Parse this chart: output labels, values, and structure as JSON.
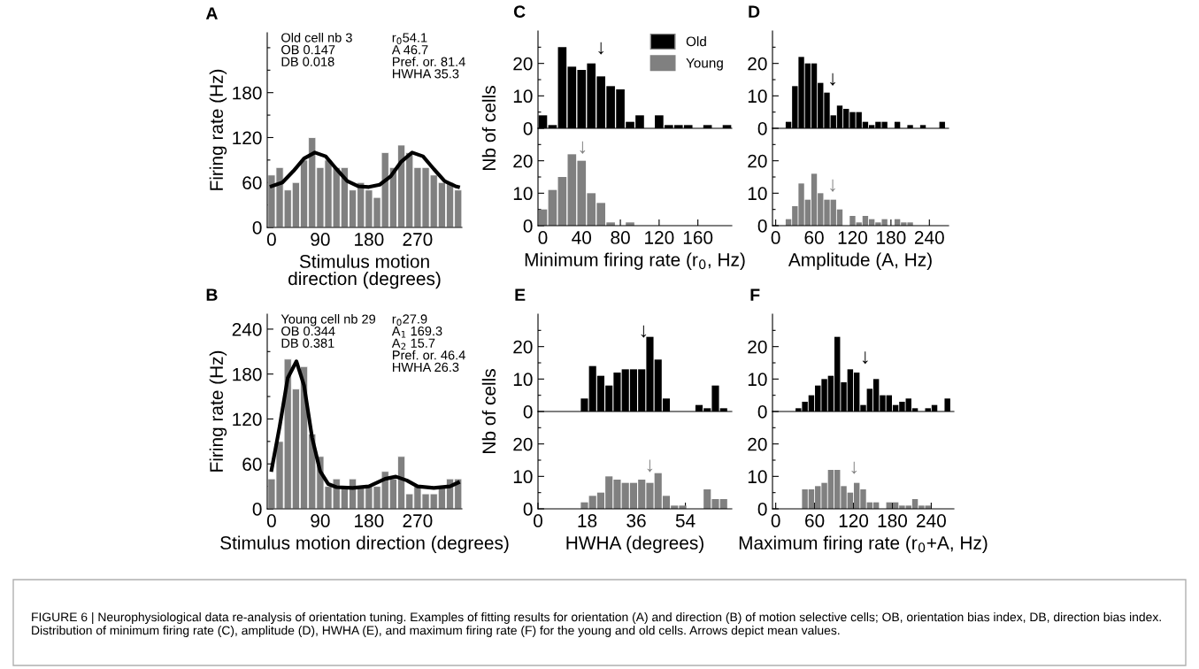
{
  "chart_data": [
    {
      "type": "bar",
      "title": "A",
      "xlabel": "Stimulus motion\ndirection (degrees)",
      "ylabel": "Firing rate (Hz)",
      "x": [
        0,
        15,
        30,
        45,
        60,
        75,
        90,
        105,
        120,
        135,
        150,
        165,
        180,
        195,
        210,
        225,
        240,
        255,
        270,
        285,
        300,
        315,
        330,
        345
      ],
      "series": [
        {
          "color": "#808080",
          "values": [
            70,
            80,
            50,
            60,
            90,
            120,
            80,
            90,
            80,
            80,
            50,
            60,
            50,
            40,
            100,
            80,
            110,
            100,
            80,
            80,
            70,
            60,
            60,
            50
          ]
        },
        {
          "type": "line",
          "color": "#000000",
          "x": [
            0,
            20,
            40,
            60,
            80,
            100,
            120,
            140,
            160,
            180,
            200,
            220,
            240,
            260,
            280,
            300,
            320,
            340,
            345
          ],
          "values": [
            55,
            60,
            75,
            92,
            100,
            95,
            78,
            62,
            55,
            54,
            57,
            68,
            88,
            100,
            95,
            78,
            62,
            55,
            54
          ]
        }
      ],
      "xlim": [
        -8,
        352
      ],
      "ylim": [
        0,
        260
      ],
      "xticks": [
        0,
        90,
        180,
        270
      ],
      "yticks": [
        0,
        {
          "value": 30,
          "label": null
        },
        60,
        {
          "value": 90,
          "label": null
        },
        120,
        {
          "value": 150,
          "label": null
        },
        180,
        {
          "value": 210,
          "label": null
        },
        {
          "value": 240,
          "label": null
        }
      ],
      "annotations": [
        "Old cell nb 3\nOB 0.147\nDB 0.018",
        "r$_{0}$54.1\nA 46.7\nPref. or. 81.4\nHWHA 35.3",
        "FIGURE 6 | Neurophysiological data re-analysis of orientation tuning. Examples of fitting results for orientation (A) and direction (B) of motion selective cells; OB, orientation bias index, DB, direction bias index. Distribution of minimum firing rate (C), amplitude (D), HWHA (E), and maximum firing rate (F) for the young and old cells. Arrows depict mean values."
      ]
    },
    {
      "type": "histogram",
      "title": "C",
      "ylabel": "Nb of cells",
      "bins": [
        -5,
        5,
        15,
        25,
        35,
        45,
        55,
        65,
        75,
        85,
        95,
        105,
        115,
        125,
        135,
        145,
        155,
        165,
        175,
        185,
        195
      ],
      "series": [
        {
          "name": "Old",
          "color": "#000000",
          "values": [
            4,
            1,
            25,
            19,
            18,
            20,
            16,
            13,
            12,
            2,
            4,
            0,
            4,
            1,
            1,
            1,
            0,
            1,
            0,
            1
          ]
        }
      ],
      "xlim": [
        -5,
        195
      ],
      "ylim": [
        0,
        30
      ],
      "yticks": [
        0,
        {
          "value": 5,
          "label": null
        },
        10,
        {
          "value": 15,
          "label": null
        },
        20,
        {
          "value": 25,
          "label": null
        }
      ],
      "tick_labels": "y",
      "legend": "top right",
      "annotations": [
        "↓"
      ]
    },
    {
      "type": "histogram",
      "xlabel": "Minimum firing rate (r$_{0}$, Hz)",
      "bins": [
        -5,
        5,
        15,
        25,
        35,
        45,
        55,
        65,
        75,
        85,
        95,
        105,
        115,
        125,
        135,
        145,
        155,
        165,
        175,
        185,
        195
      ],
      "series": [
        {
          "name": "Young",
          "color": "#808080",
          "values": [
            5,
            11,
            15,
            22,
            20,
            10,
            7,
            1,
            0,
            1,
            0,
            0,
            0,
            0,
            0,
            0,
            0,
            0,
            0,
            0
          ]
        }
      ],
      "xlim": [
        -5,
        195
      ],
      "ylim": [
        0,
        30
      ],
      "xticks": [
        0,
        40,
        80,
        120,
        160
      ],
      "yticks": [
        0,
        {
          "value": 5,
          "label": null
        },
        10,
        {
          "value": 15,
          "label": null
        },
        20,
        {
          "value": 25,
          "label": null
        }
      ],
      "annotations": [
        "↓"
      ]
    },
    {
      "type": "histogram",
      "title": "D",
      "bins": [
        15,
        25,
        35,
        45,
        55,
        65,
        75,
        85,
        95,
        105,
        115,
        125,
        135,
        145,
        155,
        165,
        175,
        185,
        195,
        205,
        215,
        225,
        235,
        245,
        255,
        265
      ],
      "series": [
        {
          "color": "#000000",
          "values": [
            2,
            13,
            22,
            20,
            20,
            14,
            11,
            4,
            7,
            6,
            5,
            5,
            2,
            1,
            2,
            2,
            0,
            2,
            0,
            1,
            0,
            1,
            0,
            0,
            2
          ]
        }
      ],
      "xlim": [
        -5,
        270
      ],
      "ylim": [
        0,
        30
      ],
      "yticks": [
        0,
        {
          "value": 5,
          "label": null
        },
        10,
        {
          "value": 15,
          "label": null
        },
        20,
        {
          "value": 25,
          "label": null
        }
      ],
      "tick_labels": "y",
      "annotations": [
        "↓"
      ]
    },
    {
      "type": "histogram",
      "xlabel": "Amplitude (A, Hz)",
      "bins": [
        15,
        25,
        35,
        45,
        55,
        65,
        75,
        85,
        95,
        105,
        115,
        125,
        135,
        145,
        155,
        165,
        175,
        185,
        195,
        205,
        215,
        225,
        235,
        245,
        255,
        265
      ],
      "series": [
        {
          "color": "#808080",
          "values": [
            2,
            6,
            13,
            8,
            16,
            10,
            8,
            8,
            5,
            0,
            3,
            1,
            3,
            2,
            1,
            2,
            0,
            2,
            1,
            1,
            0,
            0,
            0,
            0,
            0
          ]
        }
      ],
      "xlim": [
        -5,
        270
      ],
      "ylim": [
        0,
        30
      ],
      "xticks": [
        0,
        60,
        120,
        180,
        240
      ],
      "yticks": [
        0,
        {
          "value": 5,
          "label": null
        },
        10,
        {
          "value": 15,
          "label": null
        },
        20,
        {
          "value": 25,
          "label": null
        }
      ],
      "annotations": [
        "↓"
      ]
    },
    {
      "type": "bar",
      "title": "B",
      "xlabel": "Stimulus motion direction (degrees)",
      "ylabel": "Firing rate (Hz)",
      "x": [
        0,
        15,
        30,
        45,
        60,
        75,
        90,
        105,
        120,
        135,
        150,
        165,
        180,
        195,
        210,
        225,
        240,
        255,
        270,
        285,
        300,
        315,
        330,
        345
      ],
      "series": [
        {
          "color": "#808080",
          "values": [
            40,
            90,
            200,
            160,
            190,
            100,
            70,
            30,
            40,
            30,
            40,
            30,
            30,
            30,
            50,
            40,
            70,
            20,
            30,
            20,
            20,
            30,
            40,
            40
          ]
        },
        {
          "type": "line",
          "color": "#000000",
          "x": [
            0,
            15,
            30,
            46,
            60,
            75,
            90,
            105,
            120,
            150,
            180,
            210,
            230,
            250,
            270,
            300,
            330,
            345
          ],
          "values": [
            52,
            110,
            175,
            197,
            165,
            95,
            50,
            33,
            29,
            28,
            30,
            40,
            43,
            38,
            30,
            28,
            30,
            35
          ]
        }
      ],
      "xlim": [
        -8,
        352
      ],
      "ylim": [
        0,
        260
      ],
      "xticks": [
        0,
        90,
        180,
        270
      ],
      "yticks": [
        0,
        {
          "value": 30,
          "label": null
        },
        60,
        {
          "value": 90,
          "label": null
        },
        120,
        {
          "value": 150,
          "label": null
        },
        180,
        {
          "value": 210,
          "label": null
        },
        240
      ],
      "annotations": [
        "Young cell nb 29\nOB 0.344\nDB 0.381",
        "r$_{0}$27.9\nA$_{1}$ 169.3\nA$_{2}$ 15.7\nPref. or. 46.4\nHWHA 26.3"
      ]
    },
    {
      "type": "histogram",
      "title": "E",
      "ylabel": "Nb of cells",
      "bins": [
        15.5,
        18.5,
        21.5,
        24.5,
        27.5,
        30.5,
        33.5,
        36.5,
        39.5,
        42.5,
        45.5,
        48.5,
        51.5,
        54.5,
        57.5,
        60.5,
        63.5,
        66.5,
        69.5
      ],
      "series": [
        {
          "color": "#000000",
          "values": [
            4,
            14,
            11,
            8,
            12,
            13,
            13,
            13,
            23,
            16,
            4,
            0,
            0,
            0,
            2,
            1,
            8,
            1
          ]
        }
      ],
      "xlim": [
        0,
        71
      ],
      "ylim": [
        0,
        30
      ],
      "yticks": [
        0,
        {
          "value": 5,
          "label": null
        },
        10,
        {
          "value": 15,
          "label": null
        },
        20,
        {
          "value": 25,
          "label": null
        }
      ],
      "tick_labels": "y",
      "annotations": [
        "↓"
      ]
    },
    {
      "type": "histogram",
      "xlabel": "HWHA (degrees)",
      "bins": [
        15.5,
        18.5,
        21.5,
        24.5,
        27.5,
        30.5,
        33.5,
        36.5,
        39.5,
        42.5,
        45.5,
        48.5,
        51.5,
        54.5,
        57.5,
        60.5,
        63.5,
        66.5,
        69.5
      ],
      "series": [
        {
          "color": "#808080",
          "values": [
            2,
            4,
            5,
            10,
            9,
            8,
            8,
            9,
            8,
            11,
            4,
            1,
            1,
            0,
            0,
            6,
            3,
            3
          ]
        }
      ],
      "xlim": [
        0,
        71
      ],
      "ylim": [
        0,
        30
      ],
      "xticks": [
        0,
        18,
        36,
        54
      ],
      "yticks": [
        0,
        {
          "value": 5,
          "label": null
        },
        10,
        {
          "value": 15,
          "label": null
        },
        20,
        {
          "value": 25,
          "label": null
        }
      ],
      "annotations": [
        "↓"
      ]
    },
    {
      "type": "histogram",
      "title": "F",
      "bins": [
        30,
        40,
        50,
        60,
        70,
        80,
        90,
        100,
        110,
        120,
        130,
        140,
        150,
        160,
        170,
        180,
        190,
        200,
        210,
        220,
        230,
        240,
        250,
        260,
        270
      ],
      "series": [
        {
          "color": "#000000",
          "values": [
            1,
            3,
            5,
            8,
            10,
            11,
            23,
            9,
            13,
            12,
            2,
            7,
            10,
            5,
            5,
            2,
            3,
            4,
            1,
            0,
            1,
            2,
            0,
            4
          ]
        }
      ],
      "xlim": [
        -5,
        275
      ],
      "ylim": [
        0,
        30
      ],
      "yticks": [
        0,
        {
          "value": 5,
          "label": null
        },
        10,
        {
          "value": 15,
          "label": null
        },
        20,
        {
          "value": 25,
          "label": null
        }
      ],
      "tick_labels": "y",
      "annotations": [
        "↓"
      ]
    },
    {
      "type": "histogram",
      "xlabel": "Maximum firing rate (r$_{0}$+A, Hz)",
      "bins": [
        30,
        40,
        50,
        60,
        70,
        80,
        90,
        100,
        110,
        120,
        130,
        140,
        150,
        160,
        170,
        180,
        190,
        200,
        210,
        220,
        230,
        240,
        250,
        260,
        270
      ],
      "series": [
        {
          "color": "#808080",
          "values": [
            0,
            6,
            6,
            7,
            8,
            12,
            12,
            7,
            5,
            8,
            6,
            2,
            2,
            0,
            2,
            2,
            1,
            1,
            3,
            1,
            1,
            0,
            0,
            0
          ]
        }
      ],
      "xlim": [
        -5,
        275
      ],
      "ylim": [
        0,
        30
      ],
      "xticks": [
        0,
        60,
        120,
        180,
        240
      ],
      "yticks": [
        0,
        {
          "value": 5,
          "label": null
        },
        10,
        {
          "value": 15,
          "label": null
        },
        20,
        {
          "value": 25,
          "label": null
        }
      ],
      "annotations": [
        "↓"
      ]
    }
  ]
}
